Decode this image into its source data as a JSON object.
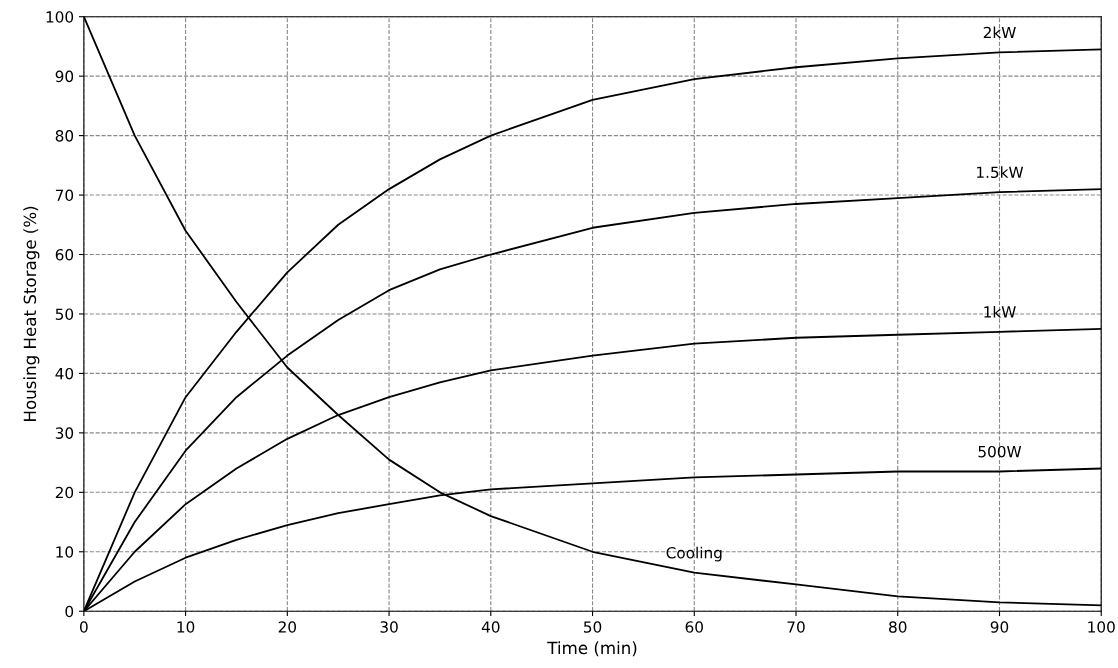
{
  "chart_data": {
    "type": "line",
    "xlabel": "Time (min)",
    "ylabel": "Housing Heat Storage (%)",
    "x": [
      0,
      5,
      10,
      15,
      20,
      25,
      30,
      35,
      40,
      50,
      60,
      70,
      80,
      90,
      100
    ],
    "series": [
      {
        "name": "2kW",
        "color": "#000000",
        "values": [
          0,
          20,
          36,
          47,
          57,
          65,
          71,
          76,
          80,
          86,
          89.5,
          91.5,
          93,
          94,
          94.5
        ]
      },
      {
        "name": "1.5kW",
        "color": "#000000",
        "values": [
          0,
          15,
          27,
          36,
          43,
          49,
          54,
          57.5,
          60,
          64.5,
          67,
          68.5,
          69.5,
          70.5,
          71
        ]
      },
      {
        "name": "1kW",
        "color": "#000000",
        "values": [
          0,
          10,
          18,
          24,
          29,
          33,
          36,
          38.5,
          40.5,
          43,
          45,
          46,
          46.5,
          47,
          47.5
        ]
      },
      {
        "name": "500W",
        "color": "#000000",
        "values": [
          0,
          5,
          9,
          12,
          14.5,
          16.5,
          18,
          19.5,
          20.5,
          21.5,
          22.5,
          23,
          23.5,
          23.5,
          24
        ]
      },
      {
        "name": "Cooling",
        "color": "#000000",
        "values": [
          100,
          80,
          64,
          52,
          41,
          33,
          25.5,
          20,
          16,
          10,
          6.5,
          4.5,
          2.5,
          1.5,
          1
        ]
      }
    ],
    "xlim": [
      0,
      100
    ],
    "xticks": [
      0,
      10,
      20,
      30,
      40,
      50,
      60,
      70,
      80,
      90,
      100
    ],
    "ylim": [
      0,
      100
    ],
    "yticks": [
      0,
      10,
      20,
      30,
      40,
      50,
      60,
      70,
      80,
      90,
      100
    ],
    "grid": true,
    "line_style": "solid",
    "marker": "none"
  }
}
